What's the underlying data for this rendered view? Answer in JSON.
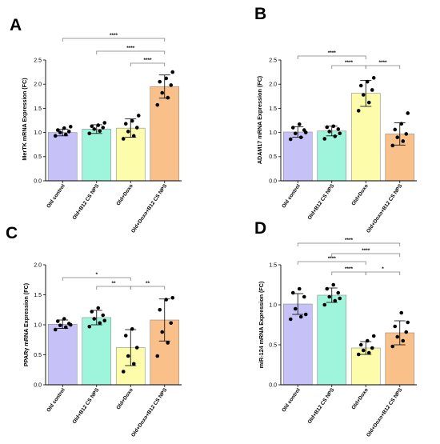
{
  "colors": {
    "bars": [
      "#c6c2f7",
      "#9ff5dc",
      "#fdfcaa",
      "#f9c08a"
    ],
    "bar_stroke": "#8c8c8c",
    "point": "#000000",
    "bracket": "#7f7f7f"
  },
  "chart_data": [
    {
      "type": "bar",
      "panel": "A",
      "ylabel": "MerTK mRNA Expression (FC)",
      "categories": [
        "Old control",
        "Old+B12 CS NPS",
        "Old+Doxo",
        "Old+Doxo+B12 CS NPS"
      ],
      "values": [
        1.0,
        1.07,
        1.09,
        1.95
      ],
      "errors": [
        0.07,
        0.09,
        0.19,
        0.24
      ],
      "points": [
        [
          0.93,
          0.96,
          1.0,
          1.02,
          1.05,
          1.09,
          1.12
        ],
        [
          0.98,
          1.03,
          1.07,
          1.1,
          1.13,
          1.15,
          1.2
        ],
        [
          0.87,
          0.93,
          1.02,
          1.1,
          1.18,
          1.24,
          1.35
        ],
        [
          1.57,
          1.72,
          1.82,
          1.98,
          2.05,
          2.12,
          2.25
        ]
      ],
      "ylim": [
        0,
        2.5
      ],
      "yticks": [
        "0.0",
        "0.5",
        "1.0",
        "1.5",
        "2.0",
        "2.5"
      ],
      "comparisons": [
        {
          "from": 0,
          "to": 3,
          "label": "****"
        },
        {
          "from": 1,
          "to": 3,
          "label": "****"
        },
        {
          "from": 2,
          "to": 3,
          "label": "****"
        }
      ]
    },
    {
      "type": "bar",
      "panel": "B",
      "ylabel": "ADAM17 mRNA Expression (FC)",
      "categories": [
        "Old control",
        "Old+B12 CS NPS",
        "Old+Doxo",
        "Old+Doxo+B12 CS NPS"
      ],
      "values": [
        1.01,
        1.03,
        1.81,
        0.97
      ],
      "errors": [
        0.11,
        0.1,
        0.27,
        0.23
      ],
      "points": [
        [
          0.86,
          0.9,
          0.98,
          1.05,
          1.1,
          1.17,
          1.0
        ],
        [
          0.87,
          0.92,
          1.02,
          1.07,
          1.11,
          1.13,
          0.98
        ],
        [
          1.45,
          1.62,
          1.78,
          1.88,
          1.97,
          2.05,
          2.13
        ],
        [
          0.73,
          0.82,
          0.9,
          0.97,
          1.06,
          1.18,
          1.4
        ]
      ],
      "ylim": [
        0,
        2.5
      ],
      "yticks": [
        "0.0",
        "0.5",
        "1.0",
        "1.5",
        "2.0",
        "2.5"
      ],
      "comparisons": [
        {
          "from": 0,
          "to": 2,
          "label": "****"
        },
        {
          "from": 1,
          "to": 2,
          "label": "****"
        },
        {
          "from": 2,
          "to": 3,
          "label": "****"
        }
      ]
    },
    {
      "type": "bar",
      "panel": "C",
      "ylabel": "PPARγ mRNA Expression (FC)",
      "categories": [
        "Old control",
        "Old+B12 CS NPS",
        "Old+Doxo",
        "Old+Doxo+B12 CS NPS"
      ],
      "values": [
        1.01,
        1.12,
        0.62,
        1.08
      ],
      "errors": [
        0.07,
        0.12,
        0.3,
        0.35
      ],
      "points": [
        [
          0.92,
          0.96,
          0.99,
          1.02,
          1.06,
          1.1,
          1.0
        ],
        [
          0.97,
          1.03,
          1.1,
          1.16,
          1.22,
          1.28,
          1.07
        ],
        [
          0.22,
          0.35,
          0.48,
          0.62,
          0.82,
          0.93
        ],
        [
          0.48,
          0.7,
          0.88,
          1.03,
          1.25,
          1.42,
          1.45
        ]
      ],
      "ylim": [
        0,
        2.0
      ],
      "yticks": [
        "0.0",
        "0.5",
        "1.0",
        "1.5",
        "2.0"
      ],
      "comparisons": [
        {
          "from": 0,
          "to": 2,
          "label": "*"
        },
        {
          "from": 1,
          "to": 2,
          "label": "**"
        },
        {
          "from": 2,
          "to": 3,
          "label": "**"
        }
      ]
    },
    {
      "type": "bar",
      "panel": "D",
      "ylabel": "miR-124 mRNA Expression (FC)",
      "categories": [
        "Old control",
        "Old+B12 CS NPS",
        "Old+Doxo",
        "Old+Doxo+B12 CS NPS"
      ],
      "values": [
        1.01,
        1.12,
        0.46,
        0.65
      ],
      "errors": [
        0.13,
        0.09,
        0.08,
        0.15
      ],
      "points": [
        [
          0.82,
          0.85,
          0.95,
          1.1,
          1.15,
          1.2,
          0.88
        ],
        [
          1.0,
          1.05,
          1.1,
          1.15,
          1.2,
          1.25,
          1.08
        ],
        [
          0.38,
          0.4,
          0.43,
          0.46,
          0.5,
          0.55,
          0.61
        ],
        [
          0.48,
          0.55,
          0.6,
          0.66,
          0.73,
          0.9,
          0.78
        ]
      ],
      "ylim": [
        0,
        1.5
      ],
      "yticks": [
        "0.0",
        "0.5",
        "1.0",
        "1.5"
      ],
      "comparisons": [
        {
          "from": 0,
          "to": 2,
          "label": "****"
        },
        {
          "from": 1,
          "to": 2,
          "label": "****"
        },
        {
          "from": 2,
          "to": 3,
          "label": "*"
        },
        {
          "from": 0,
          "to": 3,
          "label": "****"
        },
        {
          "from": 1,
          "to": 3,
          "label": "****"
        }
      ]
    }
  ]
}
